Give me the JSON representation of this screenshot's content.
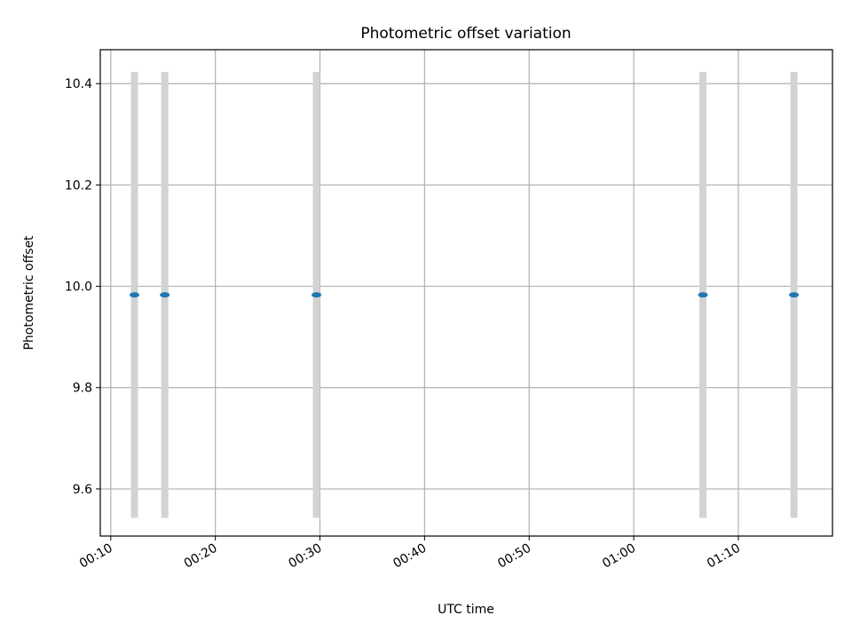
{
  "chart_data": {
    "type": "scatter",
    "title": "Photometric offset variation",
    "xlabel": "UTC time",
    "ylabel": "Photometric offset",
    "x_tick_labels": [
      "00:10",
      "00:20",
      "00:30",
      "00:40",
      "00:50",
      "01:00",
      "01:10"
    ],
    "y_tick_labels": [
      "9.6",
      "9.8",
      "10.0",
      "10.2",
      "10.4"
    ],
    "x_ticks": [
      "00:10",
      "00:20",
      "00:30",
      "00:40",
      "00:50",
      "01:00",
      "01:10"
    ],
    "y_ticks": [
      9.6,
      9.8,
      10.0,
      10.2,
      10.4
    ],
    "xlim": [
      "00:09",
      "01:19"
    ],
    "ylim": [
      9.507,
      10.467
    ],
    "grid": true,
    "points": [
      {
        "x": "00:12:16",
        "y": 9.983,
        "err": 0.44
      },
      {
        "x": "00:15:10",
        "y": 9.983,
        "err": 0.44
      },
      {
        "x": "00:29:40",
        "y": 9.983,
        "err": 0.44
      },
      {
        "x": "01:06:37",
        "y": 9.983,
        "err": 0.44
      },
      {
        "x": "01:15:19",
        "y": 9.983,
        "err": 0.44
      }
    ],
    "colors": {
      "marker": "#1f77b4",
      "errorbar": "#d3d3d3",
      "grid": "#b0b0b0"
    }
  }
}
